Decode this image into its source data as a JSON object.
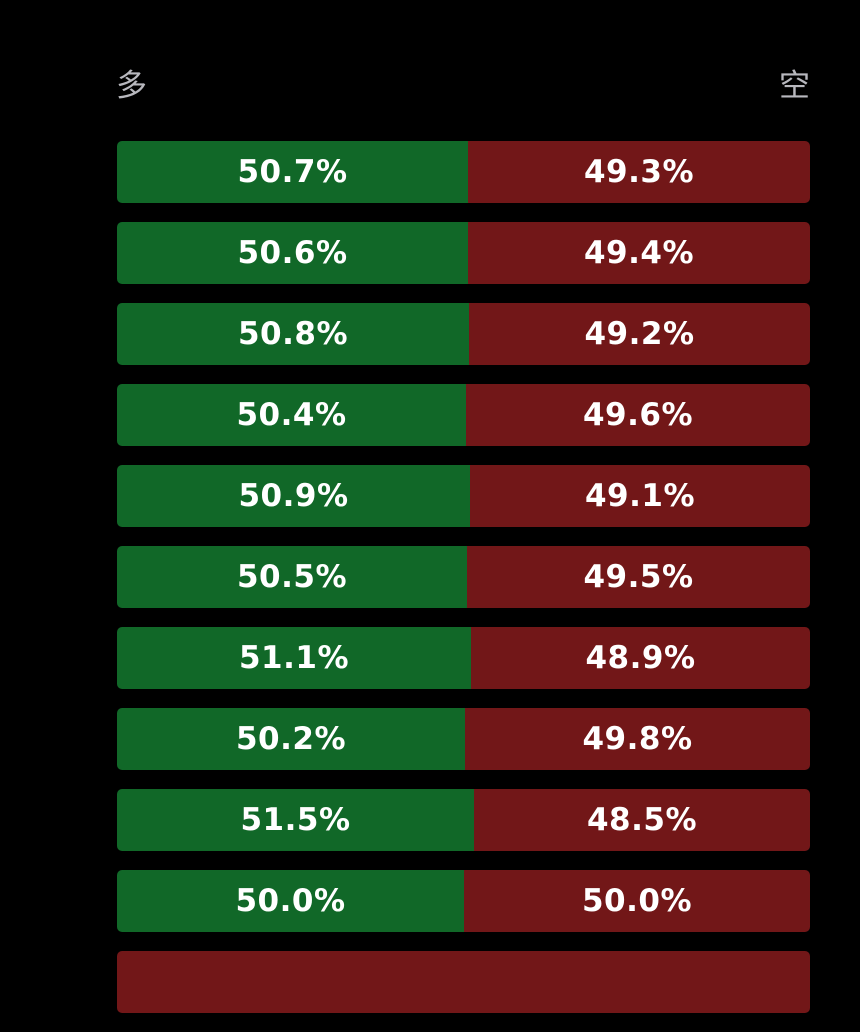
{
  "header": {
    "long_label": "多",
    "short_label": "空"
  },
  "colors": {
    "background": "#000000",
    "long": "#116828",
    "short": "#721718",
    "label": "#b8b8be"
  },
  "chart_data": {
    "type": "bar",
    "orientation": "horizontal-stacked-100%",
    "series": [
      {
        "name": "多",
        "values": [
          50.7,
          50.6,
          50.8,
          50.4,
          50.9,
          50.5,
          51.1,
          50.2,
          51.5,
          50.0
        ]
      },
      {
        "name": "空",
        "values": [
          49.3,
          49.4,
          49.2,
          49.6,
          49.1,
          49.5,
          48.9,
          49.8,
          48.5,
          50.0
        ]
      }
    ],
    "long_labels": [
      "50.7%",
      "50.6%",
      "50.8%",
      "50.4%",
      "50.9%",
      "50.5%",
      "51.1%",
      "50.2%",
      "51.5%",
      "50.0%"
    ],
    "short_labels": [
      "49.3%",
      "49.4%",
      "49.2%",
      "49.6%",
      "49.1%",
      "49.5%",
      "48.9%",
      "49.8%",
      "48.5%",
      "50.0%"
    ]
  }
}
